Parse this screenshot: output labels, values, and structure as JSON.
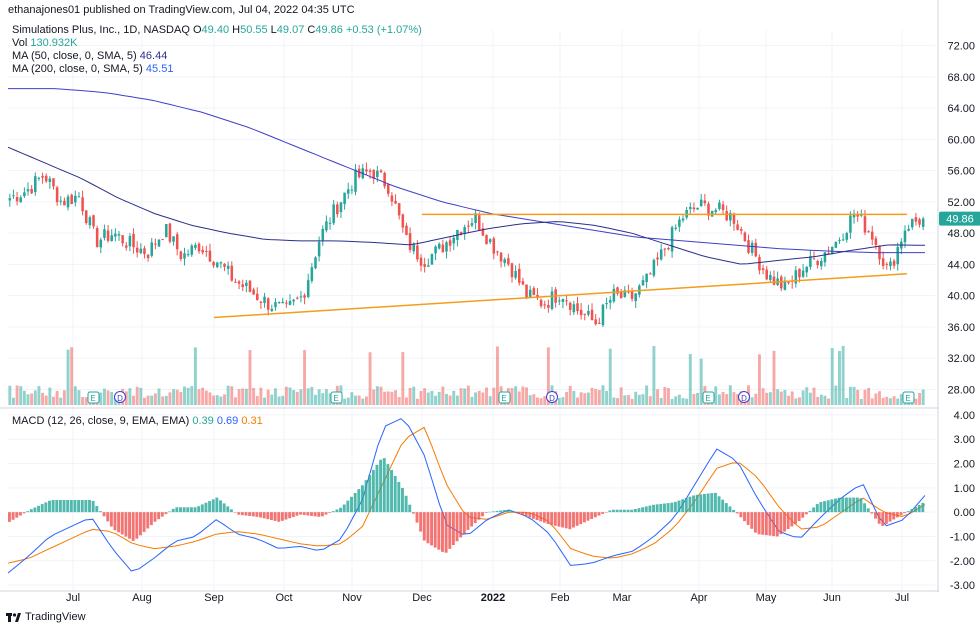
{
  "header": {
    "published_text": "ethanajones01 published on TradingView.com, Jul 04, 2022 04:35 UTC"
  },
  "legend": {
    "symbol": "Simulations Plus, Inc., 1D, NASDAQ",
    "ohlc_open_label": "O",
    "ohlc_open": "49.40",
    "ohlc_high_label": "H",
    "ohlc_high": "50.55",
    "ohlc_low_label": "L",
    "ohlc_low": "49.07",
    "ohlc_close_label": "C",
    "ohlc_close": "49.86",
    "ohlc_change": "+0.53 (+1.07%)",
    "vol_label": "Vol",
    "vol_value": "130.932K",
    "ma50_label": "MA (50, close, 0, SMA, 5)",
    "ma50_value": "46.44",
    "ma200_label": "MA (200, close, 0, SMA, 5)",
    "ma200_value": "45.51",
    "macd_label": "MACD (12, 26, close, 9, EMA, EMA)",
    "macd_hist": "0.39",
    "macd_line": "0.69",
    "macd_signal": "0.31"
  },
  "price_label": "49.86",
  "brand": "TradingView",
  "colors": {
    "up": "#26a69a",
    "down": "#ef5350",
    "ma50": "#2b2f8c",
    "ma200": "#3f3fc9",
    "trend": "#f59c1a",
    "macd": "#2962ff",
    "signal": "#f57c00"
  },
  "chart_data": [
    {
      "type": "candlestick",
      "title": "Simulations Plus, Inc., 1D, NASDAQ",
      "x_ticks": [
        "Jul",
        "Aug",
        "Sep",
        "Oct",
        "Nov",
        "Dec",
        "2022",
        "Feb",
        "Mar",
        "Apr",
        "May",
        "Jun",
        "Jul"
      ],
      "y_ticks": [
        "72.00",
        "68.00",
        "64.00",
        "60.00",
        "56.00",
        "52.00",
        "48.00",
        "44.00",
        "40.00",
        "36.00",
        "32.00",
        "28.00"
      ],
      "ylim": [
        26,
        74
      ],
      "close_path_weekly": [
        52.5,
        53.5,
        55.5,
        52.0,
        52.8,
        47.0,
        48.0,
        46.5,
        45.5,
        48.5,
        45.0,
        46.5,
        44.5,
        42.0,
        40.5,
        39.0,
        38.0,
        40.0,
        47.5,
        51.5,
        55.0,
        56.0,
        54.0,
        47.0,
        44.5,
        46.0,
        48.5,
        50.0,
        46.5,
        44.0,
        40.0,
        39.0,
        40.5,
        38.0,
        36.5,
        40.0,
        39.5,
        42.0,
        46.0,
        50.0,
        51.5,
        51.0,
        50.0,
        46.0,
        42.5,
        41.0,
        43.5,
        45.0,
        47.0,
        50.5,
        48.0,
        43.0,
        49.0,
        49.86
      ],
      "ma50": [
        59,
        57,
        55,
        52.5,
        50.5,
        49,
        48,
        47.2,
        47,
        47,
        46.8,
        46.5,
        47.5,
        48.5,
        49.2,
        49.5,
        49,
        48,
        46.5,
        45,
        44,
        44.5,
        45,
        45.8,
        46.5,
        46.44
      ],
      "ma200": [
        66.5,
        66.5,
        66,
        65,
        63.5,
        61.5,
        59,
        56.5,
        54,
        52,
        50.5,
        49.5,
        48.5,
        47.5,
        47,
        46.5,
        46,
        45.7,
        45.5,
        45.51
      ],
      "trendlines": [
        {
          "from": [
            "Sep",
            37.2
          ],
          "to": [
            "Jul",
            42.8
          ]
        },
        {
          "from": [
            "Dec",
            50.4
          ],
          "to": [
            "Jul",
            50.4
          ]
        }
      ],
      "events": [
        "E",
        "D",
        "E",
        "E",
        "D",
        "E",
        "D",
        "E"
      ],
      "last_price": 49.86
    },
    {
      "type": "macd",
      "y_ticks": [
        "4.00",
        "3.00",
        "2.00",
        "1.00",
        "0.00",
        "-1.00",
        "-2.00",
        "-3.00"
      ],
      "ylim": [
        -3.2,
        4.2
      ],
      "macd": [
        -2.5,
        -1.8,
        -1.0,
        -0.6,
        -0.2,
        -1.5,
        -2.5,
        -1.9,
        -1.2,
        -1.0,
        -0.3,
        -0.9,
        -1.1,
        -1.5,
        -1.4,
        -1.6,
        -1.1,
        0.5,
        3.5,
        3.9,
        2.3,
        -0.5,
        -1.0,
        -0.3,
        0.1,
        -0.2,
        -0.9,
        -2.2,
        -2.1,
        -1.8,
        -1.6,
        -1.0,
        -0.2,
        1.2,
        2.6,
        2.1,
        0.5,
        -0.8,
        -1.1,
        -0.2,
        0.6,
        1.2,
        -0.6,
        -0.3,
        0.69
      ],
      "signal": [
        -2.1,
        -1.9,
        -1.5,
        -1.1,
        -0.7,
        -0.8,
        -1.3,
        -1.5,
        -1.4,
        -1.2,
        -0.9,
        -0.8,
        -0.9,
        -1.1,
        -1.3,
        -1.4,
        -1.3,
        -0.6,
        1.2,
        3.0,
        3.5,
        1.2,
        -0.2,
        -0.3,
        0.0,
        0.0,
        -0.4,
        -1.5,
        -1.8,
        -1.9,
        -1.7,
        -1.3,
        -0.6,
        0.5,
        1.8,
        2.1,
        1.4,
        0.2,
        -0.7,
        -0.6,
        0.0,
        0.6,
        0.0,
        -0.2,
        0.31
      ],
      "histogram_last": 0.39
    }
  ]
}
